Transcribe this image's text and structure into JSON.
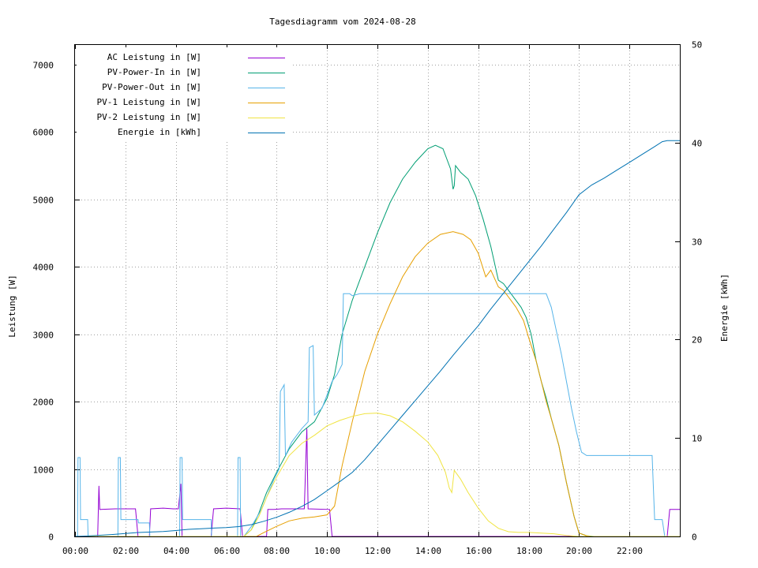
{
  "chart_data": {
    "type": "line",
    "title": "Tagesdiagramm vom 2024-08-28",
    "ylabel": "Leistung [W]",
    "y2label": "Energie [kWh]",
    "x_unit": "hours",
    "xlim": [
      0,
      24
    ],
    "ylim": [
      0,
      7300
    ],
    "y2lim": [
      0,
      50
    ],
    "x_ticks": [
      "00:00",
      "02:00",
      "04:00",
      "06:00",
      "08:00",
      "10:00",
      "12:00",
      "14:00",
      "16:00",
      "18:00",
      "20:00",
      "22:00"
    ],
    "y_ticks": [
      "0",
      "1000",
      "2000",
      "3000",
      "4000",
      "5000",
      "6000",
      "7000"
    ],
    "y2_ticks": [
      "0",
      "10",
      "20",
      "30",
      "40",
      "50"
    ],
    "grid": true,
    "legend_position": "top-left",
    "series": [
      {
        "name": "AC Leistung in [W]",
        "color": "#9400d3",
        "axis": "left",
        "points": [
          [
            0.15,
            0
          ],
          [
            0.9,
            0
          ],
          [
            0.95,
            750
          ],
          [
            0.98,
            400
          ],
          [
            1.6,
            410
          ],
          [
            2.0,
            410
          ],
          [
            2.4,
            410
          ],
          [
            2.5,
            0
          ],
          [
            2.6,
            0
          ],
          [
            2.95,
            0
          ],
          [
            3.0,
            410
          ],
          [
            3.5,
            420
          ],
          [
            3.9,
            410
          ],
          [
            4.1,
            410
          ],
          [
            4.2,
            780
          ],
          [
            4.25,
            0
          ],
          [
            5.4,
            0
          ],
          [
            5.5,
            410
          ],
          [
            6.0,
            420
          ],
          [
            6.55,
            410
          ],
          [
            6.65,
            0
          ],
          [
            7.6,
            0
          ],
          [
            7.65,
            400
          ],
          [
            7.9,
            400
          ],
          [
            8.2,
            410
          ],
          [
            8.6,
            410
          ],
          [
            9.1,
            410
          ],
          [
            9.2,
            1600
          ],
          [
            9.25,
            410
          ],
          [
            10.1,
            400
          ],
          [
            10.2,
            0
          ],
          [
            23.5,
            0
          ],
          [
            23.6,
            400
          ],
          [
            24.0,
            400
          ]
        ]
      },
      {
        "name": "PV-Power-In in [W]",
        "color": "#009e73",
        "axis": "left",
        "points": [
          [
            0,
            0
          ],
          [
            6.7,
            0
          ],
          [
            7.0,
            100
          ],
          [
            7.3,
            350
          ],
          [
            7.6,
            650
          ],
          [
            8.0,
            950
          ],
          [
            8.5,
            1300
          ],
          [
            9.0,
            1550
          ],
          [
            9.5,
            1700
          ],
          [
            10.0,
            2050
          ],
          [
            10.3,
            2400
          ],
          [
            10.6,
            3000
          ],
          [
            11.0,
            3500
          ],
          [
            11.5,
            4000
          ],
          [
            12.0,
            4500
          ],
          [
            12.5,
            4950
          ],
          [
            13.0,
            5300
          ],
          [
            13.5,
            5550
          ],
          [
            14.0,
            5750
          ],
          [
            14.3,
            5800
          ],
          [
            14.6,
            5750
          ],
          [
            14.9,
            5450
          ],
          [
            15.0,
            5150
          ],
          [
            15.05,
            5200
          ],
          [
            15.1,
            5500
          ],
          [
            15.3,
            5400
          ],
          [
            15.6,
            5300
          ],
          [
            15.9,
            5050
          ],
          [
            16.2,
            4700
          ],
          [
            16.5,
            4300
          ],
          [
            16.8,
            3800
          ],
          [
            17.0,
            3750
          ],
          [
            17.3,
            3600
          ],
          [
            17.5,
            3500
          ],
          [
            17.7,
            3400
          ],
          [
            17.9,
            3250
          ],
          [
            18.1,
            3000
          ],
          [
            18.3,
            2600
          ],
          [
            18.5,
            2300
          ],
          [
            18.7,
            2050
          ],
          [
            18.9,
            1750
          ],
          [
            19.2,
            1350
          ],
          [
            19.5,
            800
          ],
          [
            19.8,
            300
          ],
          [
            20.0,
            50
          ],
          [
            20.3,
            10
          ],
          [
            20.6,
            0
          ],
          [
            24,
            0
          ]
        ]
      },
      {
        "name": "PV-Power-Out in [W]",
        "color": "#56b4e9",
        "axis": "left",
        "points": [
          [
            0,
            0
          ],
          [
            0.1,
            0
          ],
          [
            0.12,
            1170
          ],
          [
            0.2,
            1170
          ],
          [
            0.22,
            250
          ],
          [
            0.5,
            250
          ],
          [
            0.52,
            0
          ],
          [
            1.7,
            0
          ],
          [
            1.72,
            1170
          ],
          [
            1.8,
            1170
          ],
          [
            1.82,
            250
          ],
          [
            2.5,
            250
          ],
          [
            2.52,
            200
          ],
          [
            2.95,
            200
          ],
          [
            2.97,
            0
          ],
          [
            4.15,
            0
          ],
          [
            4.17,
            1170
          ],
          [
            4.25,
            1170
          ],
          [
            4.27,
            250
          ],
          [
            5.4,
            250
          ],
          [
            5.42,
            0
          ],
          [
            6.45,
            0
          ],
          [
            6.47,
            1170
          ],
          [
            6.55,
            1170
          ],
          [
            6.57,
            0
          ],
          [
            6.7,
            0
          ],
          [
            7.0,
            150
          ],
          [
            7.4,
            400
          ],
          [
            7.9,
            850
          ],
          [
            8.1,
            1000
          ],
          [
            8.15,
            2150
          ],
          [
            8.3,
            2250
          ],
          [
            8.35,
            1200
          ],
          [
            8.6,
            1400
          ],
          [
            9.0,
            1600
          ],
          [
            9.25,
            1700
          ],
          [
            9.3,
            2800
          ],
          [
            9.45,
            2830
          ],
          [
            9.5,
            1800
          ],
          [
            9.8,
            1900
          ],
          [
            10.0,
            2100
          ],
          [
            10.2,
            2300
          ],
          [
            10.4,
            2400
          ],
          [
            10.6,
            2550
          ],
          [
            10.65,
            3600
          ],
          [
            10.9,
            3600
          ],
          [
            11.0,
            3570
          ],
          [
            11.3,
            3600
          ],
          [
            12,
            3600
          ],
          [
            13,
            3600
          ],
          [
            14,
            3600
          ],
          [
            15,
            3600
          ],
          [
            16,
            3600
          ],
          [
            17,
            3600
          ],
          [
            18,
            3600
          ],
          [
            18.7,
            3600
          ],
          [
            18.9,
            3400
          ],
          [
            19.1,
            3050
          ],
          [
            19.3,
            2700
          ],
          [
            19.5,
            2300
          ],
          [
            19.7,
            1900
          ],
          [
            19.9,
            1550
          ],
          [
            20.1,
            1250
          ],
          [
            20.3,
            1200
          ],
          [
            21,
            1200
          ],
          [
            22,
            1200
          ],
          [
            22.8,
            1200
          ],
          [
            22.9,
            1200
          ],
          [
            23.0,
            250
          ],
          [
            23.3,
            250
          ],
          [
            23.4,
            0
          ],
          [
            24,
            0
          ]
        ]
      },
      {
        "name": "PV-1 Leistung in [W]",
        "color": "#e69f00",
        "axis": "left",
        "points": [
          [
            0,
            0
          ],
          [
            7.2,
            0
          ],
          [
            7.5,
            60
          ],
          [
            8.0,
            150
          ],
          [
            8.5,
            230
          ],
          [
            9.0,
            270
          ],
          [
            9.5,
            290
          ],
          [
            10.0,
            320
          ],
          [
            10.3,
            450
          ],
          [
            10.6,
            1050
          ],
          [
            11.0,
            1700
          ],
          [
            11.5,
            2450
          ],
          [
            12.0,
            3000
          ],
          [
            12.5,
            3450
          ],
          [
            13.0,
            3850
          ],
          [
            13.5,
            4150
          ],
          [
            14.0,
            4350
          ],
          [
            14.5,
            4480
          ],
          [
            15.0,
            4520
          ],
          [
            15.4,
            4480
          ],
          [
            15.7,
            4400
          ],
          [
            16.0,
            4200
          ],
          [
            16.3,
            3850
          ],
          [
            16.5,
            3950
          ],
          [
            16.8,
            3700
          ],
          [
            17.0,
            3650
          ],
          [
            17.3,
            3500
          ],
          [
            17.5,
            3400
          ],
          [
            17.8,
            3200
          ],
          [
            18.0,
            2950
          ],
          [
            18.3,
            2600
          ],
          [
            18.5,
            2300
          ],
          [
            18.7,
            2000
          ],
          [
            18.9,
            1750
          ],
          [
            19.2,
            1350
          ],
          [
            19.5,
            800
          ],
          [
            19.8,
            300
          ],
          [
            20.0,
            50
          ],
          [
            20.3,
            10
          ],
          [
            20.5,
            0
          ],
          [
            24,
            0
          ]
        ]
      },
      {
        "name": "PV-2 Leistung in [W]",
        "color": "#f0e442",
        "axis": "left",
        "points": [
          [
            0,
            0
          ],
          [
            6.7,
            0
          ],
          [
            7.0,
            100
          ],
          [
            7.3,
            300
          ],
          [
            7.6,
            580
          ],
          [
            8.0,
            880
          ],
          [
            8.5,
            1200
          ],
          [
            9.0,
            1380
          ],
          [
            9.5,
            1500
          ],
          [
            10.0,
            1640
          ],
          [
            10.5,
            1720
          ],
          [
            11.0,
            1780
          ],
          [
            11.5,
            1820
          ],
          [
            12.0,
            1830
          ],
          [
            12.5,
            1790
          ],
          [
            13.0,
            1700
          ],
          [
            13.5,
            1560
          ],
          [
            14.0,
            1400
          ],
          [
            14.4,
            1200
          ],
          [
            14.7,
            950
          ],
          [
            14.85,
            720
          ],
          [
            14.95,
            650
          ],
          [
            15.05,
            980
          ],
          [
            15.3,
            850
          ],
          [
            15.6,
            650
          ],
          [
            16.0,
            420
          ],
          [
            16.4,
            230
          ],
          [
            16.8,
            120
          ],
          [
            17.2,
            70
          ],
          [
            17.6,
            60
          ],
          [
            18.0,
            60
          ],
          [
            18.5,
            50
          ],
          [
            19.0,
            40
          ],
          [
            19.5,
            15
          ],
          [
            20.0,
            0
          ],
          [
            24,
            0
          ]
        ]
      },
      {
        "name": "Energie in [kWh]",
        "color": "#0072b2",
        "axis": "right",
        "points": [
          [
            0,
            0
          ],
          [
            0.5,
            0.05
          ],
          [
            1.0,
            0.12
          ],
          [
            1.5,
            0.2
          ],
          [
            2.0,
            0.3
          ],
          [
            2.5,
            0.4
          ],
          [
            3.0,
            0.45
          ],
          [
            3.5,
            0.5
          ],
          [
            4.0,
            0.6
          ],
          [
            4.5,
            0.72
          ],
          [
            5.0,
            0.78
          ],
          [
            5.5,
            0.85
          ],
          [
            6.0,
            0.9
          ],
          [
            6.5,
            1.0
          ],
          [
            7.0,
            1.2
          ],
          [
            7.5,
            1.55
          ],
          [
            8.0,
            1.95
          ],
          [
            8.5,
            2.45
          ],
          [
            9.0,
            3.05
          ],
          [
            9.5,
            3.75
          ],
          [
            10.0,
            4.65
          ],
          [
            10.5,
            5.55
          ],
          [
            11.0,
            6.5
          ],
          [
            11.5,
            7.8
          ],
          [
            12.0,
            9.3
          ],
          [
            12.5,
            10.8
          ],
          [
            13.0,
            12.3
          ],
          [
            13.5,
            13.8
          ],
          [
            14.0,
            15.3
          ],
          [
            14.5,
            16.8
          ],
          [
            15.0,
            18.4
          ],
          [
            15.5,
            19.9
          ],
          [
            16.0,
            21.4
          ],
          [
            16.5,
            23.1
          ],
          [
            17.0,
            24.7
          ],
          [
            17.5,
            26.3
          ],
          [
            18.0,
            27.9
          ],
          [
            18.5,
            29.5
          ],
          [
            19.0,
            31.2
          ],
          [
            19.5,
            32.9
          ],
          [
            20.0,
            34.7
          ],
          [
            20.5,
            35.7
          ],
          [
            21.0,
            36.4
          ],
          [
            21.5,
            37.2
          ],
          [
            22.0,
            38.0
          ],
          [
            22.5,
            38.8
          ],
          [
            23.0,
            39.6
          ],
          [
            23.3,
            40.1
          ],
          [
            23.5,
            40.2
          ],
          [
            24.0,
            40.2
          ]
        ]
      }
    ]
  }
}
